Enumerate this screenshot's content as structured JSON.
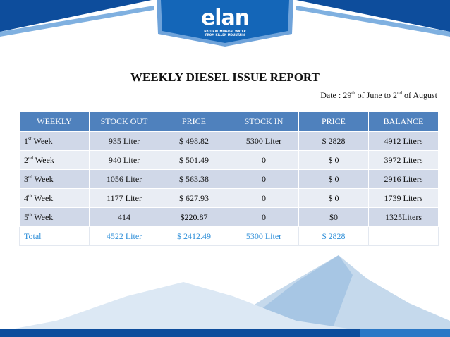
{
  "logo": {
    "name": "elan",
    "tagline": [
      "NATURAL MINERAL WATER",
      "FROM KILLEN MOUNTAIN"
    ]
  },
  "title": "WEEKLY DIESEL ISSUE REPORT",
  "date": {
    "start": "Date : 29",
    "start_sup": "th",
    "middle": "of June to 2",
    "end_sup": "nd",
    "end": "of August"
  },
  "table": {
    "header": [
      "WEEKLY",
      "STOCK OUT",
      "PRICE",
      "STOCK IN",
      "PRICE",
      "BALANCE"
    ],
    "rows": [
      [
        {
          "num": "1",
          "sup": "st",
          "label": "Week"
        },
        "935 Liter",
        "$ 498.82",
        "5300 Liter",
        "$ 2828",
        "4912 Liters"
      ],
      [
        {
          "num": "2",
          "sup": "nd",
          "label": "Week"
        },
        "940 Liter",
        "$ 501.49",
        "0",
        "$ 0",
        "3972 Liters"
      ],
      [
        {
          "num": "3",
          "sup": "rd",
          "label": "Week"
        },
        "1056 Liter",
        "$ 563.38",
        "0",
        "$ 0",
        "2916 Liters"
      ],
      [
        {
          "num": "4",
          "sup": "th",
          "label": "Week"
        },
        "1177 Liter",
        "$ 627.93",
        "0",
        "$ 0",
        "1739 Liters"
      ],
      [
        {
          "num": "5",
          "sup": "th",
          "label": "Week"
        },
        "414",
        "$220.87",
        "0",
        "$0",
        "1325Liters"
      ]
    ],
    "total": [
      "Total",
      "4522 Liter",
      "$ 2412.49",
      "5300 Liter",
      "$ 2828"
    ]
  }
}
